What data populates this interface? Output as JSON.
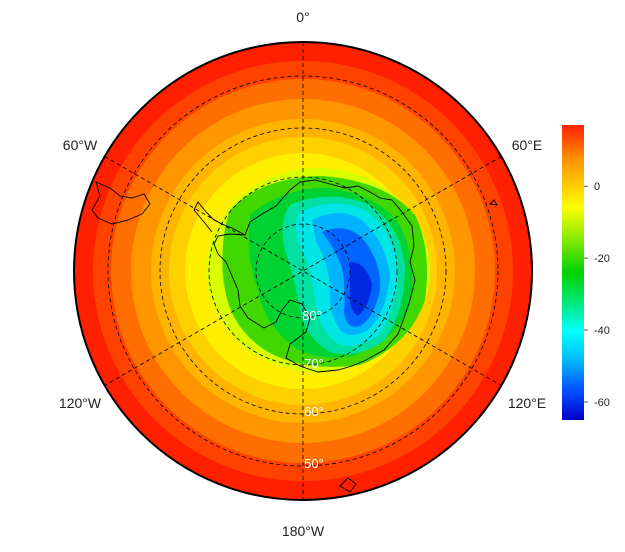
{
  "map": {
    "projection": "south-polar-stereographic",
    "longitude_labels": {
      "top": "0°",
      "upper_left": "60°W",
      "upper_right": "60°E",
      "lower_left": "120°W",
      "lower_right": "120°E",
      "bottom": "180°W"
    },
    "latitude_labels": [
      "80°",
      "70°",
      "60°",
      "50°"
    ],
    "latitude_circles_deg": [
      -80,
      -70,
      -60,
      -50
    ],
    "meridians_deg": [
      0,
      60,
      120,
      180,
      240,
      300
    ],
    "outer_latitude_deg": -40,
    "colors": {
      "boundary": "#000000",
      "graticule": "#000000",
      "coastline": "#000000"
    }
  },
  "colorbar": {
    "ticks": [
      "0",
      "-20",
      "-40",
      "-60"
    ],
    "tick_values": [
      0,
      -20,
      -40,
      -60
    ],
    "range": [
      -65,
      17
    ],
    "colormap": [
      "#0000c8",
      "#0050ff",
      "#00c8ff",
      "#00ffff",
      "#00e878",
      "#00d200",
      "#78e600",
      "#ffff00",
      "#ffc800",
      "#ff9600",
      "#ff5a00",
      "#ff2000"
    ]
  }
}
